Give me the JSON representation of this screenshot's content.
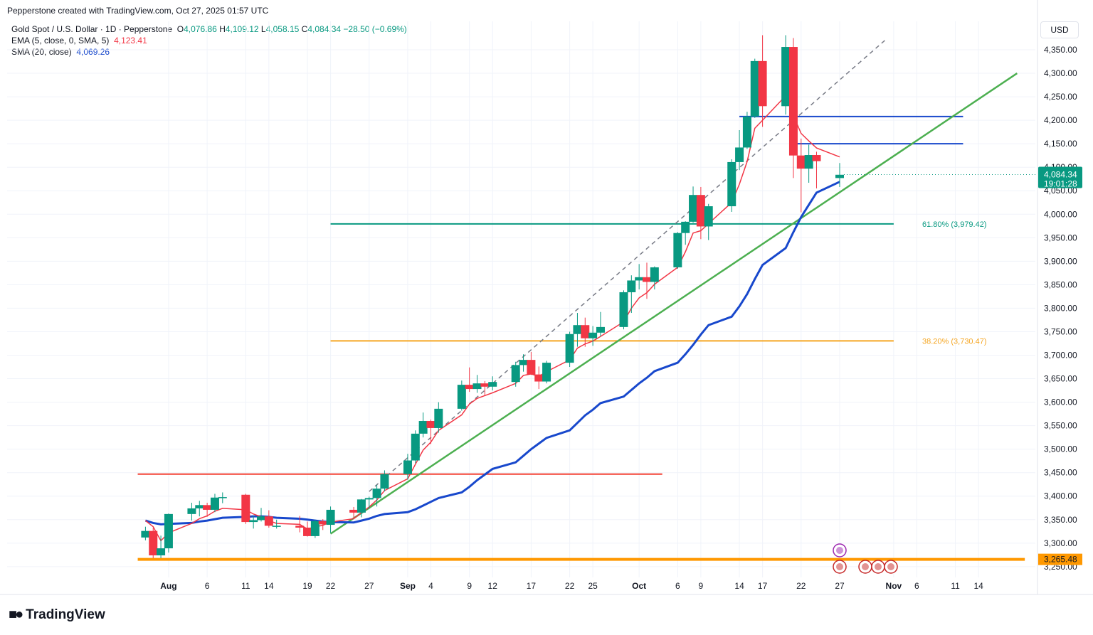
{
  "header": {
    "credit": "Pepperstone created with TradingView.com, Oct 27, 2025 01:57 UTC"
  },
  "legend": {
    "symbol": "Gold Spot / U.S. Dollar · 1D · Pepperstone",
    "o_label": "O",
    "o_value": "4,076.86",
    "h_label": "H",
    "h_value": "4,109.12",
    "l_label": "L",
    "l_value": "4,058.15",
    "c_label": "C",
    "c_value": "4,084.34",
    "change": "−28.50 (−0.69%)",
    "ema_label": "EMA (5, close, 0, SMA, 5)",
    "ema_value": "4,123.41",
    "sma_label": "SMA (20, close)",
    "sma_value": "4,069.26"
  },
  "currency": "USD",
  "brand": "TradingView",
  "colors": {
    "up": "#089981",
    "down": "#f23645",
    "ema": "#f23645",
    "sma": "#1848cc",
    "trend": "#4caf50",
    "fib": "#089981",
    "fib2": "#f5a623",
    "support": "#ff9800",
    "resistance": "#f44336",
    "hline": "#1848cc",
    "last": "#089981"
  },
  "chart_data": {
    "type": "candlestick",
    "ylim": [
      3220,
      4385
    ],
    "y_ticks": [
      3250,
      3300,
      3350,
      3400,
      3450,
      3500,
      3550,
      3600,
      3650,
      3700,
      3750,
      3800,
      3850,
      3900,
      3950,
      4000,
      4050,
      4100,
      4150,
      4200,
      4250,
      4300,
      4350
    ],
    "y_tick_labels": [
      "3,250.00",
      "3,300.00",
      "3,350.00",
      "3,400.00",
      "3,450.00",
      "3,500.00",
      "3,550.00",
      "3,600.00",
      "3,650.00",
      "3,700.00",
      "3,750.00",
      "3,800.00",
      "3,850.00",
      "3,900.00",
      "3,950.00",
      "4,000.00",
      "4,050.00",
      "4,100.00",
      "4,150.00",
      "4,200.00",
      "4,250.00",
      "4,300.00",
      "4,350.00"
    ],
    "x_ticks": [
      {
        "label": "Aug",
        "date": "2025-08-01",
        "bold": true
      },
      {
        "label": "6",
        "date": "2025-08-06"
      },
      {
        "label": "11",
        "date": "2025-08-11"
      },
      {
        "label": "14",
        "date": "2025-08-14"
      },
      {
        "label": "19",
        "date": "2025-08-19"
      },
      {
        "label": "22",
        "date": "2025-08-22"
      },
      {
        "label": "27",
        "date": "2025-08-27"
      },
      {
        "label": "Sep",
        "date": "2025-09-01",
        "bold": true
      },
      {
        "label": "4",
        "date": "2025-09-04"
      },
      {
        "label": "9",
        "date": "2025-09-09"
      },
      {
        "label": "12",
        "date": "2025-09-12"
      },
      {
        "label": "17",
        "date": "2025-09-17"
      },
      {
        "label": "22",
        "date": "2025-09-22"
      },
      {
        "label": "25",
        "date": "2025-09-25"
      },
      {
        "label": "Oct",
        "date": "2025-10-01",
        "bold": true
      },
      {
        "label": "6",
        "date": "2025-10-06"
      },
      {
        "label": "9",
        "date": "2025-10-09"
      },
      {
        "label": "14",
        "date": "2025-10-14"
      },
      {
        "label": "17",
        "date": "2025-10-17"
      },
      {
        "label": "22",
        "date": "2025-10-22"
      },
      {
        "label": "27",
        "date": "2025-10-27"
      },
      {
        "label": "Nov",
        "date": "2025-11-03",
        "bold": true
      },
      {
        "label": "6",
        "date": "2025-11-06"
      },
      {
        "label": "11",
        "date": "2025-11-11"
      },
      {
        "label": "14",
        "date": "2025-11-14"
      }
    ],
    "candles": [
      {
        "date": "2025-07-29",
        "o": 3312,
        "h": 3335,
        "l": 3306,
        "c": 3326
      },
      {
        "date": "2025-07-30",
        "o": 3326,
        "h": 3333,
        "l": 3268,
        "c": 3274
      },
      {
        "date": "2025-07-31",
        "o": 3274,
        "h": 3316,
        "l": 3268,
        "c": 3289
      },
      {
        "date": "2025-08-01",
        "o": 3289,
        "h": 3363,
        "l": 3280,
        "c": 3362
      },
      {
        "date": "2025-08-04",
        "o": 3362,
        "h": 3386,
        "l": 3348,
        "c": 3374
      },
      {
        "date": "2025-08-05",
        "o": 3374,
        "h": 3390,
        "l": 3357,
        "c": 3381
      },
      {
        "date": "2025-08-06",
        "o": 3381,
        "h": 3386,
        "l": 3356,
        "c": 3371
      },
      {
        "date": "2025-08-07",
        "o": 3371,
        "h": 3405,
        "l": 3366,
        "c": 3397
      },
      {
        "date": "2025-08-08",
        "o": 3397,
        "h": 3408,
        "l": 3385,
        "c": 3398
      },
      {
        "date": "2025-08-11",
        "o": 3403,
        "h": 3405,
        "l": 3341,
        "c": 3345
      },
      {
        "date": "2025-08-12",
        "o": 3345,
        "h": 3358,
        "l": 3331,
        "c": 3349
      },
      {
        "date": "2025-08-13",
        "o": 3349,
        "h": 3375,
        "l": 3346,
        "c": 3357
      },
      {
        "date": "2025-08-14",
        "o": 3357,
        "h": 3370,
        "l": 3333,
        "c": 3337
      },
      {
        "date": "2025-08-15",
        "o": 3337,
        "h": 3350,
        "l": 3331,
        "c": 3337
      },
      {
        "date": "2025-08-18",
        "o": 3337,
        "h": 3358,
        "l": 3323,
        "c": 3333
      },
      {
        "date": "2025-08-19",
        "o": 3333,
        "h": 3346,
        "l": 3314,
        "c": 3315
      },
      {
        "date": "2025-08-20",
        "o": 3315,
        "h": 3350,
        "l": 3311,
        "c": 3347
      },
      {
        "date": "2025-08-21",
        "o": 3347,
        "h": 3351,
        "l": 3328,
        "c": 3340
      },
      {
        "date": "2025-08-22",
        "o": 3339,
        "h": 3378,
        "l": 3322,
        "c": 3371
      },
      {
        "date": "2025-08-25",
        "o": 3371,
        "h": 3377,
        "l": 3352,
        "c": 3365
      },
      {
        "date": "2025-08-26",
        "o": 3365,
        "h": 3394,
        "l": 3355,
        "c": 3393
      },
      {
        "date": "2025-08-27",
        "o": 3393,
        "h": 3399,
        "l": 3373,
        "c": 3396
      },
      {
        "date": "2025-08-28",
        "o": 3396,
        "h": 3424,
        "l": 3378,
        "c": 3416
      },
      {
        "date": "2025-08-29",
        "o": 3416,
        "h": 3455,
        "l": 3410,
        "c": 3447
      },
      {
        "date": "2025-09-01",
        "o": 3447,
        "h": 3490,
        "l": 3435,
        "c": 3476
      },
      {
        "date": "2025-09-02",
        "o": 3476,
        "h": 3540,
        "l": 3470,
        "c": 3533
      },
      {
        "date": "2025-09-03",
        "o": 3533,
        "h": 3578,
        "l": 3525,
        "c": 3560
      },
      {
        "date": "2025-09-04",
        "o": 3560,
        "h": 3563,
        "l": 3511,
        "c": 3545
      },
      {
        "date": "2025-09-05",
        "o": 3545,
        "h": 3600,
        "l": 3535,
        "c": 3586
      },
      {
        "date": "2025-09-08",
        "o": 3586,
        "h": 3646,
        "l": 3582,
        "c": 3637
      },
      {
        "date": "2025-09-09",
        "o": 3637,
        "h": 3674,
        "l": 3622,
        "c": 3628
      },
      {
        "date": "2025-09-10",
        "o": 3628,
        "h": 3658,
        "l": 3620,
        "c": 3640
      },
      {
        "date": "2025-09-11",
        "o": 3640,
        "h": 3645,
        "l": 3613,
        "c": 3633
      },
      {
        "date": "2025-09-12",
        "o": 3633,
        "h": 3655,
        "l": 3625,
        "c": 3643
      },
      {
        "date": "2025-09-15",
        "o": 3643,
        "h": 3686,
        "l": 3633,
        "c": 3679
      },
      {
        "date": "2025-09-16",
        "o": 3679,
        "h": 3702,
        "l": 3665,
        "c": 3690
      },
      {
        "date": "2025-09-17",
        "o": 3690,
        "h": 3707,
        "l": 3658,
        "c": 3659
      },
      {
        "date": "2025-09-18",
        "o": 3659,
        "h": 3676,
        "l": 3628,
        "c": 3644
      },
      {
        "date": "2025-09-19",
        "o": 3644,
        "h": 3688,
        "l": 3640,
        "c": 3684
      },
      {
        "date": "2025-09-22",
        "o": 3684,
        "h": 3750,
        "l": 3675,
        "c": 3745
      },
      {
        "date": "2025-09-23",
        "o": 3745,
        "h": 3790,
        "l": 3718,
        "c": 3764
      },
      {
        "date": "2025-09-24",
        "o": 3764,
        "h": 3780,
        "l": 3718,
        "c": 3736
      },
      {
        "date": "2025-09-25",
        "o": 3736,
        "h": 3762,
        "l": 3720,
        "c": 3748
      },
      {
        "date": "2025-09-26",
        "o": 3748,
        "h": 3792,
        "l": 3740,
        "c": 3760
      },
      {
        "date": "2025-09-29",
        "o": 3760,
        "h": 3838,
        "l": 3755,
        "c": 3834
      },
      {
        "date": "2025-09-30",
        "o": 3834,
        "h": 3870,
        "l": 3790,
        "c": 3859
      },
      {
        "date": "2025-10-01",
        "o": 3859,
        "h": 3894,
        "l": 3840,
        "c": 3866
      },
      {
        "date": "2025-10-02",
        "o": 3866,
        "h": 3897,
        "l": 3820,
        "c": 3856
      },
      {
        "date": "2025-10-03",
        "o": 3856,
        "h": 3889,
        "l": 3840,
        "c": 3887
      },
      {
        "date": "2025-10-06",
        "o": 3887,
        "h": 3962,
        "l": 3884,
        "c": 3960
      },
      {
        "date": "2025-10-07",
        "o": 3960,
        "h": 3985,
        "l": 3935,
        "c": 3984
      },
      {
        "date": "2025-10-08",
        "o": 3984,
        "h": 4059,
        "l": 3982,
        "c": 4041
      },
      {
        "date": "2025-10-09",
        "o": 4041,
        "h": 4058,
        "l": 3947,
        "c": 3974
      },
      {
        "date": "2025-10-10",
        "o": 3974,
        "h": 4022,
        "l": 3945,
        "c": 4017
      },
      {
        "date": "2025-10-13",
        "o": 4017,
        "h": 4117,
        "l": 4005,
        "c": 4111
      },
      {
        "date": "2025-10-14",
        "o": 4111,
        "h": 4179,
        "l": 4094,
        "c": 4142
      },
      {
        "date": "2025-10-15",
        "o": 4142,
        "h": 4218,
        "l": 4139,
        "c": 4208
      },
      {
        "date": "2025-10-16",
        "o": 4208,
        "h": 4331,
        "l": 4205,
        "c": 4326
      },
      {
        "date": "2025-10-17",
        "o": 4326,
        "h": 4381,
        "l": 4186,
        "c": 4230
      },
      {
        "date": "2025-10-20",
        "o": 4230,
        "h": 4381,
        "l": 4212,
        "c": 4356
      },
      {
        "date": "2025-10-21",
        "o": 4356,
        "h": 4375,
        "l": 4077,
        "c": 4125
      },
      {
        "date": "2025-10-22",
        "o": 4125,
        "h": 4161,
        "l": 4004,
        "c": 4097
      },
      {
        "date": "2025-10-23",
        "o": 4097,
        "h": 4148,
        "l": 4067,
        "c": 4126
      },
      {
        "date": "2025-10-24",
        "o": 4126,
        "h": 4133,
        "l": 4055,
        "c": 4113
      },
      {
        "date": "2025-10-27",
        "o": 4077,
        "h": 4109,
        "l": 4058,
        "c": 4084
      }
    ],
    "ema": [
      3348,
      3335,
      3305,
      3322,
      3342,
      3352,
      3358,
      3368,
      3374,
      3371,
      3362,
      3356,
      3348,
      3342,
      3340,
      3330,
      3335,
      3338,
      3345,
      3352,
      3365,
      3377,
      3392,
      3412,
      3437,
      3468,
      3498,
      3515,
      3540,
      3573,
      3596,
      3608,
      3614,
      3620,
      3640,
      3657,
      3660,
      3655,
      3665,
      3690,
      3715,
      3724,
      3730,
      3740,
      3771,
      3800,
      3822,
      3833,
      3851,
      3887,
      3920,
      3960,
      3965,
      3980,
      4025,
      4064,
      4112,
      4183,
      4200,
      4252,
      4210,
      4172,
      4156,
      4141,
      4122
    ],
    "sma": [
      3348,
      3343,
      3340,
      3341,
      3343,
      3346,
      3348,
      3351,
      3354,
      3356,
      3357,
      3357,
      3356,
      3354,
      3352,
      3350,
      3348,
      3346,
      3345,
      3344,
      3348,
      3352,
      3358,
      3362,
      3366,
      3372,
      3380,
      3388,
      3396,
      3408,
      3420,
      3434,
      3446,
      3458,
      3472,
      3486,
      3500,
      3512,
      3524,
      3540,
      3556,
      3572,
      3584,
      3598,
      3612,
      3626,
      3640,
      3652,
      3666,
      3684,
      3702,
      3722,
      3744,
      3764,
      3782,
      3804,
      3830,
      3862,
      3892,
      3928,
      3962,
      3994,
      4020,
      4046,
      4069
    ],
    "levels": [
      {
        "price": 3979.42,
        "label": "61.80% (3,979.42)",
        "from": "2025-08-22",
        "to": "2025-11-03"
      },
      {
        "price": 3730.47,
        "label": "38.20% (3,730.47)",
        "from": "2025-08-22",
        "to": "2025-11-03"
      },
      {
        "price": 3447,
        "from": "2025-07-28",
        "to": "2025-10-04"
      },
      {
        "price": 3265.48,
        "label": "3,265.48",
        "from": "2025-07-28",
        "to": "2025-11-20"
      },
      {
        "price": 4208,
        "from": "2025-10-14",
        "to": "2025-11-12"
      },
      {
        "price": 4150,
        "from": "2025-10-21",
        "to": "2025-11-12"
      }
    ],
    "trendline": {
      "p1": {
        "date": "2025-08-22",
        "price": 3320
      },
      "p2": {
        "date": "2025-11-19",
        "price": 4300
      }
    },
    "dashed_line": {
      "p1": {
        "date": "2025-08-27",
        "price": 3410
      },
      "p2": {
        "date": "2025-11-02",
        "price": 4372
      }
    },
    "last_price": {
      "value": 4084.34,
      "label": "4,084.34",
      "countdown": "19:01:28"
    }
  }
}
